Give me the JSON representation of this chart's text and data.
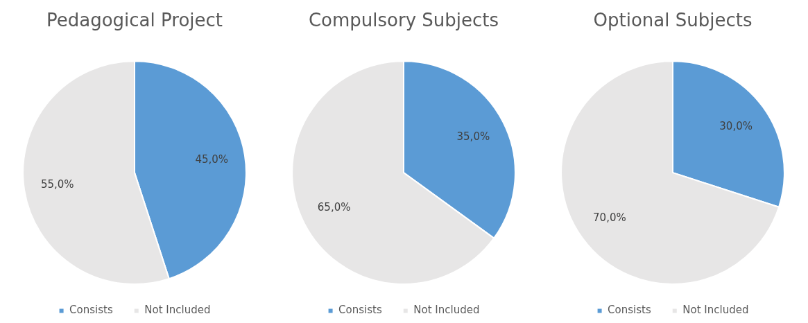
{
  "chart_data": [
    {
      "type": "pie",
      "title": "Pedagogical Project",
      "categories": [
        "Consists",
        "Not Included"
      ],
      "values": [
        45,
        55
      ],
      "colors": [
        "#5b9bd5",
        "#e7e6e6"
      ],
      "value_labels": [
        "45,0%",
        "55,0%"
      ],
      "legend": "bottom"
    },
    {
      "type": "pie",
      "title": "Compulsory Subjects",
      "categories": [
        "Consists",
        "Not Included"
      ],
      "values": [
        35,
        65
      ],
      "colors": [
        "#5b9bd5",
        "#e7e6e6"
      ],
      "value_labels": [
        "35,0%",
        "65,0%"
      ],
      "legend": "bottom"
    },
    {
      "type": "pie",
      "title": "Optional Subjects",
      "categories": [
        "Consists",
        "Not Included"
      ],
      "values": [
        30,
        70
      ],
      "colors": [
        "#5b9bd5",
        "#e7e6e6"
      ],
      "value_labels": [
        "30,0%",
        "70,0%"
      ],
      "legend": "bottom"
    }
  ]
}
